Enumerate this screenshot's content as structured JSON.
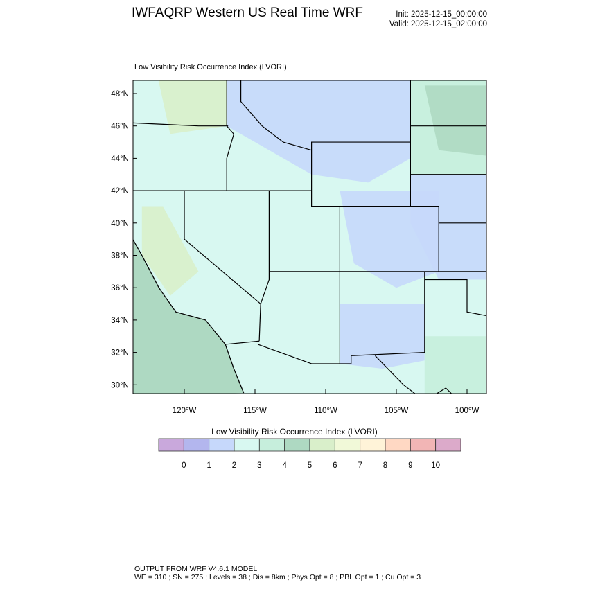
{
  "header": {
    "title": "IWFAQRP Western US Real Time WRF",
    "init": "Init: 2025-12-15_00:00:00",
    "valid": "Valid: 2025-12-15_02:00:00"
  },
  "plot": {
    "subtitle": "Low Visibility Risk Occurrence Index   (LVORI)",
    "lat_labels": [
      "48°N",
      "46°N",
      "44°N",
      "42°N",
      "40°N",
      "38°N",
      "36°N",
      "34°N",
      "32°N",
      "30°N"
    ],
    "lat_values": [
      48,
      46,
      44,
      42,
      40,
      38,
      36,
      34,
      32,
      30
    ],
    "lon_labels": [
      "120°W",
      "115°W",
      "110°W",
      "105°W",
      "100°W"
    ],
    "lon_values": [
      -120,
      -115,
      -110,
      -105,
      -100
    ],
    "colors": {
      "ocean": "#aed9c2",
      "land_default": "#d8f8f1",
      "blue": "#c6d8fb",
      "green": "#c6eedc",
      "darkgreen": "#aed9c2",
      "lightgreen": "#d9efca",
      "yellow": "#fff3d8",
      "border": "#000000"
    }
  },
  "colorbar": {
    "title": "Low Visibility Risk Occurrence Index  (LVORI)",
    "colors": [
      "#c9a8dc",
      "#b3b6ee",
      "#c6d8fb",
      "#d8f8f1",
      "#c6eedc",
      "#aed9c2",
      "#d9efca",
      "#f1f9d8",
      "#fff3d8",
      "#ffd8c3",
      "#f2b5b5",
      "#dcaaca"
    ],
    "labels": [
      "0",
      "1",
      "2",
      "3",
      "4",
      "5",
      "6",
      "7",
      "8",
      "9",
      "10"
    ]
  },
  "footer": {
    "line1": "OUTPUT FROM WRF V4.6.1 MODEL",
    "line2": "WE = 310 ; SN = 275 ; Levels = 38 ; Dis = 8km ; Phys Opt = 8 ; PBL Opt = 1 ; Cu Opt = 3"
  }
}
